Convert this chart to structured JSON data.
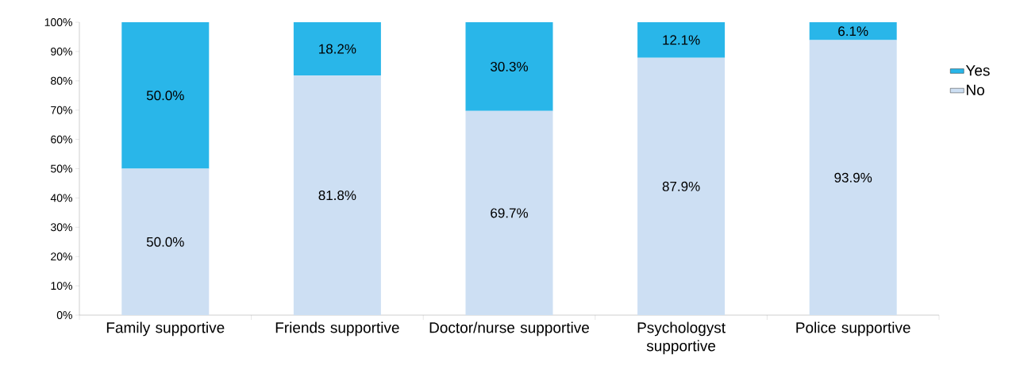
{
  "chart_data": {
    "type": "bar",
    "stacked": true,
    "categories": [
      "Family supportive",
      "Friends supportive",
      "Doctor/nurse supportive",
      "Psychologyst supportive",
      "Police supportive"
    ],
    "series": [
      {
        "name": "No",
        "color": "#cddff3",
        "values": [
          50.0,
          81.8,
          69.7,
          87.9,
          93.9
        ],
        "value_labels": [
          "50.0%",
          "81.8%",
          "69.7%",
          "87.9%",
          "93.9%"
        ]
      },
      {
        "name": "Yes",
        "color": "#29b6e9",
        "values": [
          50.0,
          18.2,
          30.3,
          12.1,
          6.1
        ],
        "value_labels": [
          "50.0%",
          "18.2%",
          "30.3%",
          "12.1%",
          "6.1%"
        ]
      }
    ],
    "ylim": [
      0,
      100
    ],
    "yticks": [
      {
        "value": 0,
        "label": "0%"
      },
      {
        "value": 10,
        "label": "10%"
      },
      {
        "value": 20,
        "label": "20%"
      },
      {
        "value": 30,
        "label": "30%"
      },
      {
        "value": 40,
        "label": "40%"
      },
      {
        "value": 50,
        "label": "50%"
      },
      {
        "value": 60,
        "label": "60%"
      },
      {
        "value": 70,
        "label": "70%"
      },
      {
        "value": 80,
        "label": "80%"
      },
      {
        "value": 90,
        "label": "90%"
      },
      {
        "value": 100,
        "label": "100%"
      }
    ],
    "legend": "right"
  }
}
